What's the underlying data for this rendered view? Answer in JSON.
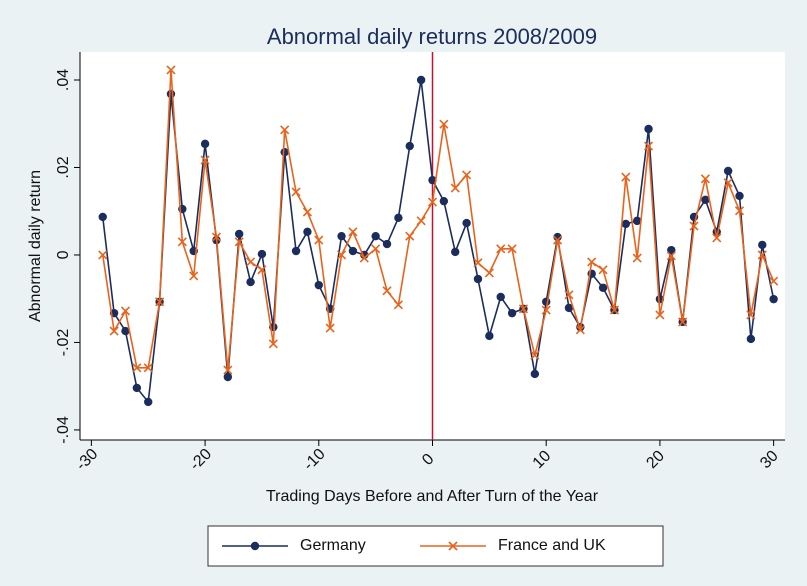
{
  "chart_data": {
    "type": "line",
    "title": "Abnormal daily returns 2008/2009",
    "x_label": "Trading Days Before and After Turn of the Year",
    "y_label": "Abnormal daily return",
    "x": [
      -29,
      -28,
      -27,
      -26,
      -25,
      -24,
      -23,
      -22,
      -21,
      -20,
      -19,
      -18,
      -17,
      -16,
      -15,
      -14,
      -13,
      -12,
      -11,
      -10,
      -9,
      -8,
      -7,
      -6,
      -5,
      -4,
      -3,
      -2,
      -1,
      0,
      1,
      2,
      3,
      4,
      5,
      6,
      7,
      8,
      9,
      10,
      11,
      12,
      13,
      14,
      15,
      16,
      17,
      18,
      19,
      20,
      21,
      22,
      23,
      24,
      25,
      26,
      27,
      28,
      29,
      30
    ],
    "series": [
      {
        "name": "Germany",
        "color": "#1b2d5c",
        "marker": "circle",
        "values": [
          0.0087,
          -0.0133,
          -0.0174,
          -0.0304,
          -0.0336,
          -0.0107,
          0.0368,
          0.0105,
          0.0009,
          0.0254,
          0.0034,
          -0.0279,
          0.0048,
          -0.0062,
          0.0002,
          -0.0165,
          0.0235,
          0.0009,
          0.0053,
          -0.0069,
          -0.0123,
          0.0043,
          0.0009,
          0,
          0.0043,
          0.0025,
          0.0085,
          0.0249,
          0.04,
          0.0171,
          0.0123,
          0.0007,
          0.0073,
          -0.0055,
          -0.0185,
          -0.0096,
          -0.0133,
          -0.0123,
          -0.0272,
          -0.0107,
          0.0041,
          -0.0121,
          -0.0165,
          -0.0043,
          -0.0075,
          -0.0126,
          0.0071,
          0.0078,
          0.0288,
          -0.0101,
          0.0011,
          -0.0153,
          0.0087,
          0.0126,
          0.0053,
          0.0192,
          0.0135,
          -0.0192,
          0.0023,
          -0.0101
        ]
      },
      {
        "name": "France and UK",
        "color": "#e8631c",
        "marker": "x",
        "values": [
          0,
          -0.0174,
          -0.0128,
          -0.0258,
          -0.0258,
          -0.0107,
          0.0423,
          0.003,
          -0.0048,
          0.0217,
          0.0041,
          -0.0263,
          0.003,
          -0.0016,
          -0.0034,
          -0.0203,
          0.0286,
          0.0144,
          0.0098,
          0.0034,
          -0.0167,
          0,
          0.0053,
          -0.0007,
          0.0014,
          -0.0082,
          -0.0114,
          0.0043,
          0.0078,
          0.0121,
          0.0299,
          0.0153,
          0.0183,
          -0.0018,
          -0.0041,
          0.0014,
          0.0014,
          -0.0123,
          -0.0229,
          -0.0126,
          0.0034,
          -0.0091,
          -0.0171,
          -0.0016,
          -0.0034,
          -0.0126,
          0.0178,
          -0.0007,
          0.0249,
          -0.0137,
          -0.0002,
          -0.0153,
          0.0066,
          0.0174,
          0.0039,
          0.0165,
          0.0101,
          -0.0137,
          0,
          -0.006
        ]
      }
    ],
    "xlim": [
      -31,
      31
    ],
    "ylim": [
      -0.0423,
      0.0464
    ],
    "xticks": [
      -30,
      -20,
      -10,
      0,
      10,
      20,
      30
    ],
    "yticks": [
      {
        "value": -0.04,
        "label": "-.04"
      },
      {
        "value": -0.02,
        "label": "-.02"
      },
      0,
      {
        "value": 0.02,
        "label": ".02"
      },
      {
        "value": 0.04,
        "label": ".04"
      }
    ],
    "vline": 0,
    "vline_color": "#c8102e",
    "legend": "bottom"
  }
}
